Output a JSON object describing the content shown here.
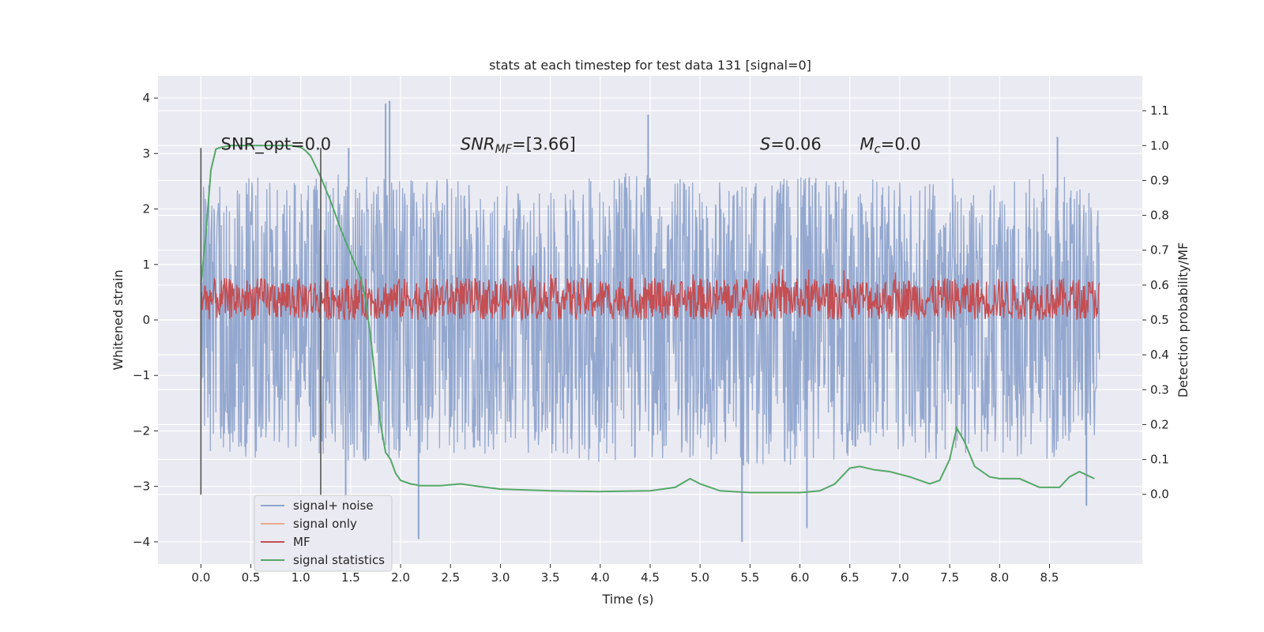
{
  "chart_data": {
    "type": "line",
    "title": "stats at each timestep for test data 131 [signal=0]",
    "xlabel": "Time (s)",
    "ylabel_left": "Whitened strain",
    "ylabel_right": "Detection probability/MF",
    "xlim": [
      -0.43,
      9.43
    ],
    "ylim_left": [
      -4.4,
      4.4
    ],
    "ylim_right": [
      -0.2,
      1.2
    ],
    "x_ticks": [
      0.0,
      0.5,
      1.0,
      1.5,
      2.0,
      2.5,
      3.0,
      3.5,
      4.0,
      4.5,
      5.0,
      5.5,
      6.0,
      6.5,
      7.0,
      7.5,
      8.0,
      8.5
    ],
    "x_tick_labels": [
      "0.0",
      "0.5",
      "1.0",
      "1.5",
      "2.0",
      "2.5",
      "3.0",
      "3.5",
      "4.0",
      "4.5",
      "5.0",
      "5.5",
      "6.0",
      "6.5",
      "7.0",
      "7.5",
      "8.0",
      "8.5"
    ],
    "y_left_ticks": [
      -4,
      -3,
      -2,
      -1,
      0,
      1,
      2,
      3,
      4
    ],
    "y_left_tick_labels": [
      "−4",
      "−3",
      "−2",
      "−1",
      "0",
      "1",
      "2",
      "3",
      "4"
    ],
    "y_right_ticks": [
      0.0,
      0.1,
      0.2,
      0.3,
      0.4,
      0.5,
      0.6,
      0.7,
      0.8,
      0.9,
      1.0,
      1.1
    ],
    "y_right_tick_labels": [
      "0.0",
      "0.1",
      "0.2",
      "0.3",
      "0.4",
      "0.5",
      "0.6",
      "0.7",
      "0.8",
      "0.9",
      "1.0",
      "1.1"
    ],
    "grid": true,
    "legend_position": "lower-left",
    "series": [
      {
        "name": "signal+ noise",
        "axis": "left",
        "color": "#8fa4cc",
        "x_range": [
          0.0,
          9.0
        ],
        "envelope": {
          "x": [
            0.0,
            0.5,
            1.0,
            1.5,
            2.0,
            2.5,
            3.0,
            3.5,
            4.0,
            4.5,
            5.0,
            5.5,
            6.0,
            6.5,
            7.0,
            7.5,
            8.0,
            8.5,
            9.0
          ],
          "upper": [
            2.4,
            2.6,
            2.5,
            2.7,
            2.5,
            2.6,
            2.5,
            2.4,
            2.6,
            2.7,
            2.5,
            2.5,
            2.6,
            2.6,
            2.5,
            2.6,
            2.5,
            2.7,
            2.3
          ],
          "lower": [
            -2.4,
            -2.5,
            -2.4,
            -2.6,
            -2.5,
            -2.4,
            -2.5,
            -2.4,
            -2.6,
            -2.5,
            -2.5,
            -2.7,
            -2.6,
            -2.5,
            -2.6,
            -2.5,
            -2.4,
            -2.6,
            -2.2
          ]
        },
        "peaks": [
          {
            "x": 1.85,
            "y": 3.9
          },
          {
            "x": 1.89,
            "y": 3.95
          },
          {
            "x": 4.48,
            "y": 3.7
          },
          {
            "x": 1.48,
            "y": 3.1
          },
          {
            "x": 8.58,
            "y": 3.3
          },
          {
            "x": 2.18,
            "y": -3.95
          },
          {
            "x": 5.42,
            "y": -4.0
          },
          {
            "x": 6.07,
            "y": -3.75
          },
          {
            "x": 8.87,
            "y": -3.35
          },
          {
            "x": 1.45,
            "y": -3.85
          }
        ]
      },
      {
        "name": "signal only",
        "axis": "left",
        "color": "#e8a98c",
        "x": [],
        "y": []
      },
      {
        "name": "MF",
        "axis": "right",
        "color": "#c44e52",
        "x_range": [
          0.0,
          9.0
        ],
        "center": 0.55,
        "band": [
          0.5,
          0.62
        ],
        "min": 0.5,
        "max": 0.66
      },
      {
        "name": "signal statistics",
        "axis": "right",
        "color": "#55a868",
        "x": [
          0.0,
          0.05,
          0.1,
          0.15,
          0.2,
          0.3,
          0.5,
          0.7,
          0.9,
          1.0,
          1.05,
          1.1,
          1.15,
          1.2,
          1.3,
          1.4,
          1.5,
          1.6,
          1.65,
          1.7,
          1.75,
          1.8,
          1.85,
          1.9,
          1.95,
          2.0,
          2.1,
          2.2,
          2.4,
          2.6,
          2.8,
          3.0,
          3.5,
          4.0,
          4.5,
          4.75,
          4.9,
          5.0,
          5.2,
          5.5,
          6.0,
          6.2,
          6.35,
          6.5,
          6.6,
          6.75,
          6.9,
          7.1,
          7.3,
          7.4,
          7.5,
          7.57,
          7.65,
          7.75,
          7.9,
          8.0,
          8.2,
          8.4,
          8.6,
          8.7,
          8.8,
          8.95
        ],
        "y": [
          0.6,
          0.75,
          0.93,
          0.99,
          0.995,
          1.0,
          1.0,
          1.0,
          1.0,
          0.995,
          0.985,
          0.97,
          0.94,
          0.91,
          0.84,
          0.76,
          0.69,
          0.62,
          0.56,
          0.45,
          0.32,
          0.2,
          0.12,
          0.1,
          0.06,
          0.04,
          0.03,
          0.025,
          0.025,
          0.03,
          0.022,
          0.015,
          0.01,
          0.008,
          0.01,
          0.02,
          0.045,
          0.03,
          0.01,
          0.005,
          0.005,
          0.01,
          0.03,
          0.075,
          0.08,
          0.07,
          0.065,
          0.05,
          0.03,
          0.04,
          0.1,
          0.19,
          0.15,
          0.08,
          0.05,
          0.045,
          0.045,
          0.02,
          0.02,
          0.05,
          0.065,
          0.045
        ]
      }
    ],
    "vertical_lines": [
      {
        "x": 0.0
      },
      {
        "x": 1.2
      }
    ],
    "annotations": [
      {
        "id": "snr-opt",
        "x": 0.2,
        "y": 3.1,
        "base": "SNR_opt",
        "sub": "",
        "value": "=0.0",
        "italic": false
      },
      {
        "id": "snr-mf",
        "x": 2.6,
        "y": 3.1,
        "base": "SNR",
        "sub": "MF",
        "value": "=[3.66]",
        "italic": true
      },
      {
        "id": "s-value",
        "x": 5.6,
        "y": 3.1,
        "base": "S",
        "sub": "",
        "value": "=0.06",
        "italic": true
      },
      {
        "id": "mc-value",
        "x": 6.6,
        "y": 3.1,
        "base": "M",
        "sub": "c",
        "value": "=0.0",
        "italic": true
      }
    ]
  }
}
